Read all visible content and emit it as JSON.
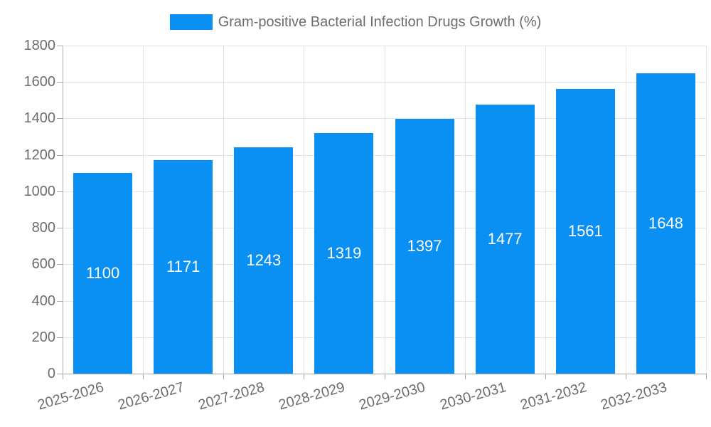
{
  "legend": {
    "label": "Gram-positive Bacterial Infection Drugs Growth (%)"
  },
  "chart_data": {
    "type": "bar",
    "title": "Gram-positive Bacterial Infection Drugs Growth (%)",
    "categories": [
      "2025-2026",
      "2026-2027",
      "2027-2028",
      "2028-2029",
      "2029-2030",
      "2030-2031",
      "2031-2032",
      "2032-2033"
    ],
    "series": [
      {
        "name": "Gram-positive Bacterial Infection Drugs Growth (%)",
        "values": [
          1100,
          1171,
          1243,
          1319,
          1397,
          1477,
          1561,
          1648
        ]
      }
    ],
    "xlabel": "",
    "ylabel": "",
    "ylim": [
      0,
      1800
    ],
    "yticks": [
      0,
      200,
      400,
      600,
      800,
      1000,
      1200,
      1400,
      1600,
      1800
    ],
    "grid": true,
    "legend_position": "top-center",
    "x_label_rotation_deg": -16,
    "colors": {
      "bar": "#0a8ff2",
      "value_label": "#ffffff",
      "axis_text": "#6d6d6d",
      "grid_line": "#e4e4e4",
      "axis_line": "#ababab",
      "background": "#ffffff"
    }
  }
}
